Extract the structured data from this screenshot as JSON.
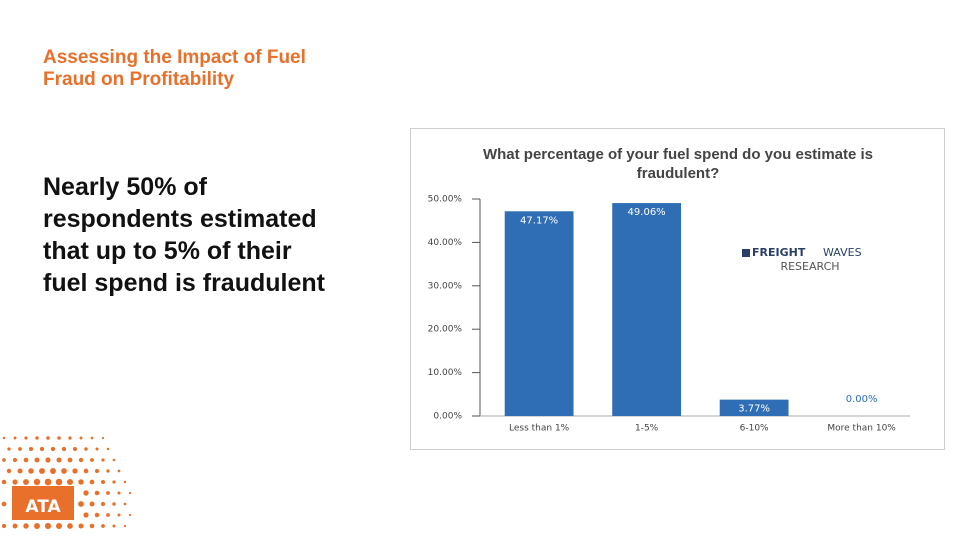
{
  "slide": {
    "title": "Assessing the Impact of Fuel Fraud on Profitability",
    "body": "Nearly 50% of respondents estimated that up to 5% of their fuel spend is fraudulent",
    "brand": {
      "name_bold": "FREIGHT",
      "name_light": "WAVES",
      "division": "RESEARCH"
    },
    "logo": "ATA"
  },
  "chart_data": {
    "type": "bar",
    "title": "What percentage of your fuel spend do you estimate is fraudulent?",
    "categories": [
      "Less than 1%",
      "1-5%",
      "6-10%",
      "More than 10%"
    ],
    "values": [
      47.17,
      49.06,
      3.77,
      0
    ],
    "value_labels": [
      "47.17%",
      "49.06%",
      "3.77%",
      "0.00%"
    ],
    "color": "#2f6db4",
    "ylim": [
      0,
      50
    ],
    "yticks": [
      {
        "value": 0,
        "label": "0.00%"
      },
      {
        "value": 10,
        "label": "10.00%"
      },
      {
        "value": 20,
        "label": "20.00%"
      },
      {
        "value": 30,
        "label": "30.00%"
      },
      {
        "value": 40,
        "label": "40.00%"
      },
      {
        "value": 50,
        "label": "50.00%"
      }
    ],
    "grid": false
  }
}
